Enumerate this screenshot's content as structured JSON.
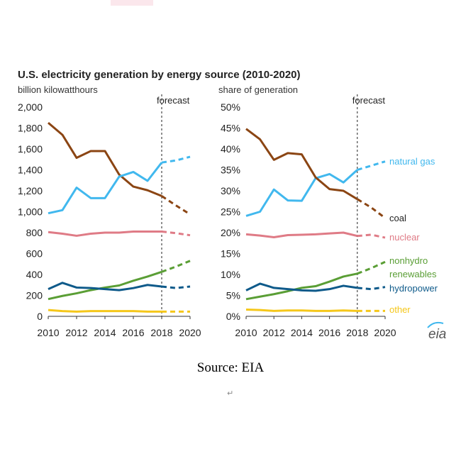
{
  "colors": {
    "natural_gas": "#41b8ee",
    "coal": "#8b4513",
    "nuclear": "#df7b86",
    "nonhydro_renewables": "#5a9e35",
    "hydropower": "#0e5a8a",
    "other": "#f5c71a"
  },
  "source_text": "Source: EIA",
  "paragraph_mark": "↵",
  "logo_text": "eia",
  "chart_data": [
    {
      "type": "line",
      "title": "U.S. electricity generation by energy source  (2010-2020)",
      "unit_label": "billion kilowatthours",
      "forecast_label": "forecast",
      "forecast_start": 2018,
      "x": [
        2010,
        2011,
        2012,
        2013,
        2014,
        2015,
        2016,
        2017,
        2018,
        2019,
        2020
      ],
      "xticks": [
        "2010",
        "2012",
        "2014",
        "2016",
        "2018",
        "2020"
      ],
      "ylim": [
        0,
        2000
      ],
      "yticks": [
        "0",
        "200",
        "400",
        "600",
        "800",
        "1,000",
        "1,200",
        "1,400",
        "1,600",
        "1,800",
        "2,000"
      ],
      "series": [
        {
          "key": "coal",
          "values": [
            1850,
            1735,
            1515,
            1580,
            1580,
            1355,
            1240,
            1205,
            1150,
            1060,
            975
          ]
        },
        {
          "key": "natural_gas",
          "values": [
            985,
            1015,
            1230,
            1130,
            1130,
            1335,
            1380,
            1295,
            1470,
            1490,
            1525
          ]
        },
        {
          "key": "nuclear",
          "values": [
            805,
            790,
            770,
            790,
            800,
            800,
            810,
            810,
            810,
            795,
            775
          ]
        },
        {
          "key": "nonhydro_renewables",
          "values": [
            165,
            195,
            220,
            250,
            275,
            295,
            340,
            380,
            425,
            475,
            530
          ]
        },
        {
          "key": "hydropower",
          "values": [
            260,
            320,
            275,
            270,
            260,
            250,
            270,
            300,
            285,
            270,
            285
          ]
        },
        {
          "key": "other",
          "values": [
            60,
            50,
            45,
            50,
            50,
            50,
            50,
            45,
            45,
            45,
            45
          ]
        }
      ]
    },
    {
      "type": "line",
      "unit_label": "share of generation",
      "forecast_label": "forecast",
      "forecast_start": 2018,
      "x": [
        2010,
        2011,
        2012,
        2013,
        2014,
        2015,
        2016,
        2017,
        2018,
        2019,
        2020
      ],
      "xticks": [
        "2010",
        "2012",
        "2014",
        "2016",
        "2018",
        "2020"
      ],
      "ylim": [
        0,
        50
      ],
      "yticks": [
        "0%",
        "5%",
        "10%",
        "15%",
        "20%",
        "25%",
        "30%",
        "35%",
        "40%",
        "45%",
        "50%"
      ],
      "series": [
        {
          "key": "natural_gas",
          "name": "natural gas",
          "values": [
            24,
            25,
            30.3,
            27.7,
            27.6,
            33,
            34,
            32,
            35,
            36,
            37
          ]
        },
        {
          "key": "coal",
          "name": "coal",
          "values": [
            44.8,
            42.3,
            37.4,
            39,
            38.7,
            33.2,
            30.4,
            30,
            28,
            26,
            23.5
          ]
        },
        {
          "key": "nuclear",
          "name": "nuclear",
          "values": [
            19.6,
            19.3,
            18.9,
            19.4,
            19.5,
            19.6,
            19.8,
            20,
            19.2,
            19.5,
            18.8
          ]
        },
        {
          "key": "nonhydro_renewables",
          "name": "nonhydro renewables",
          "values": [
            4.1,
            4.7,
            5.3,
            6,
            6.8,
            7.2,
            8.3,
            9.5,
            10.2,
            11.5,
            13
          ]
        },
        {
          "key": "hydropower",
          "name": "hydropower",
          "values": [
            6.2,
            7.8,
            6.8,
            6.5,
            6.2,
            6.1,
            6.5,
            7.3,
            6.8,
            6.5,
            7
          ]
        },
        {
          "key": "other",
          "name": "other",
          "values": [
            1.6,
            1.5,
            1.3,
            1.4,
            1.4,
            1.3,
            1.3,
            1.4,
            1.3,
            1.3,
            1.3
          ]
        }
      ]
    }
  ]
}
